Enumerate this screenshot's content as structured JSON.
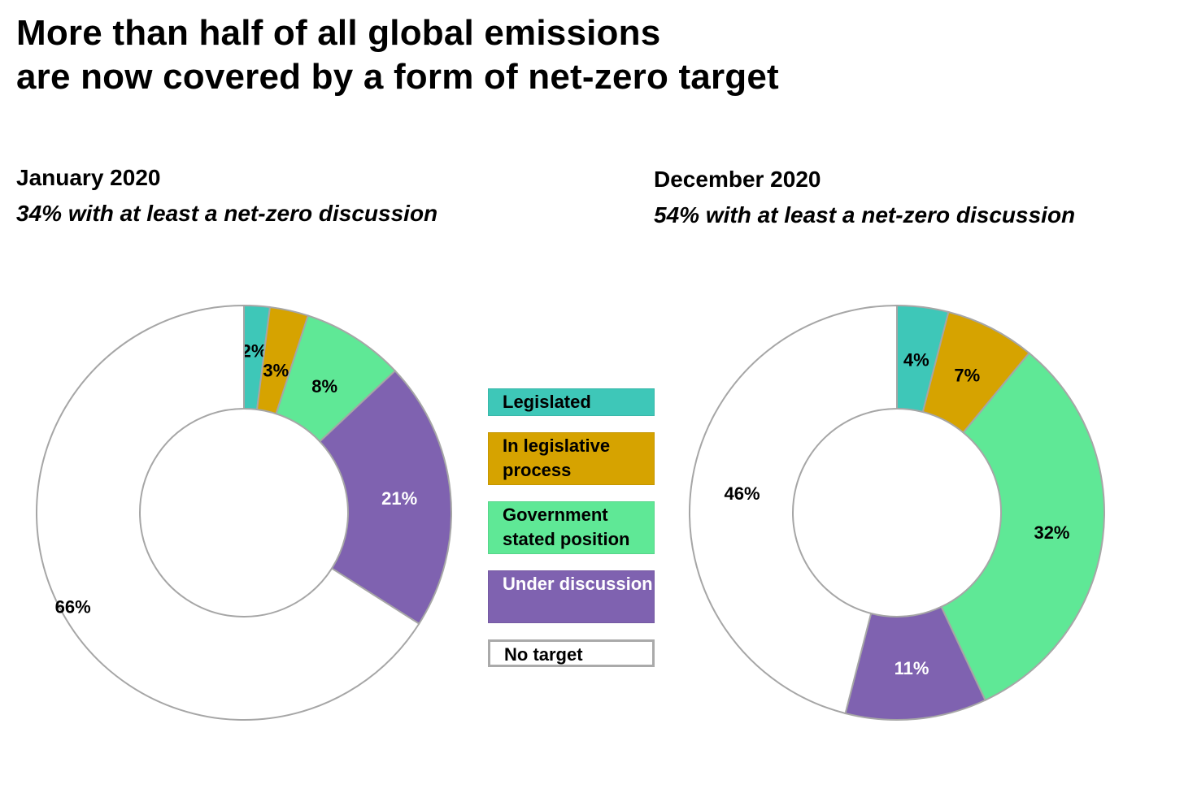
{
  "title": {
    "line1": "More than half of all global emissions",
    "line2": "are now covered by a form of net-zero target"
  },
  "legend": [
    {
      "label": "Legislated",
      "color": "#3ec7b8",
      "text_color": "#000000"
    },
    {
      "label": "In legislative process",
      "color": "#d6a300",
      "text_color": "#000000"
    },
    {
      "label": "Government stated position",
      "color": "#5fe896",
      "text_color": "#000000"
    },
    {
      "label": "Under discussion",
      "color": "#7f62b0",
      "text_color": "#ffffff"
    },
    {
      "label": "No target",
      "color": "#ffffff",
      "text_color": "#000000"
    }
  ],
  "chart_data": [
    {
      "type": "donut",
      "title": "January 2020",
      "subtitle": "34% with at least a net-zero discussion",
      "categories": [
        "Legislated",
        "In legislative process",
        "Government stated position",
        "Under discussion",
        "No target"
      ],
      "values": [
        2,
        3,
        8,
        21,
        66
      ],
      "labels": [
        "2%",
        "3%",
        "8%",
        "21%",
        "66%"
      ]
    },
    {
      "type": "donut",
      "title": "December 2020",
      "subtitle": "54% with at least a net-zero discussion",
      "categories": [
        "Legislated",
        "In legislative process",
        "Government stated position",
        "Under discussion",
        "No target"
      ],
      "values": [
        4,
        7,
        32,
        11,
        46
      ],
      "labels": [
        "4%",
        "7%",
        "32%",
        "11%",
        "46%"
      ]
    }
  ]
}
